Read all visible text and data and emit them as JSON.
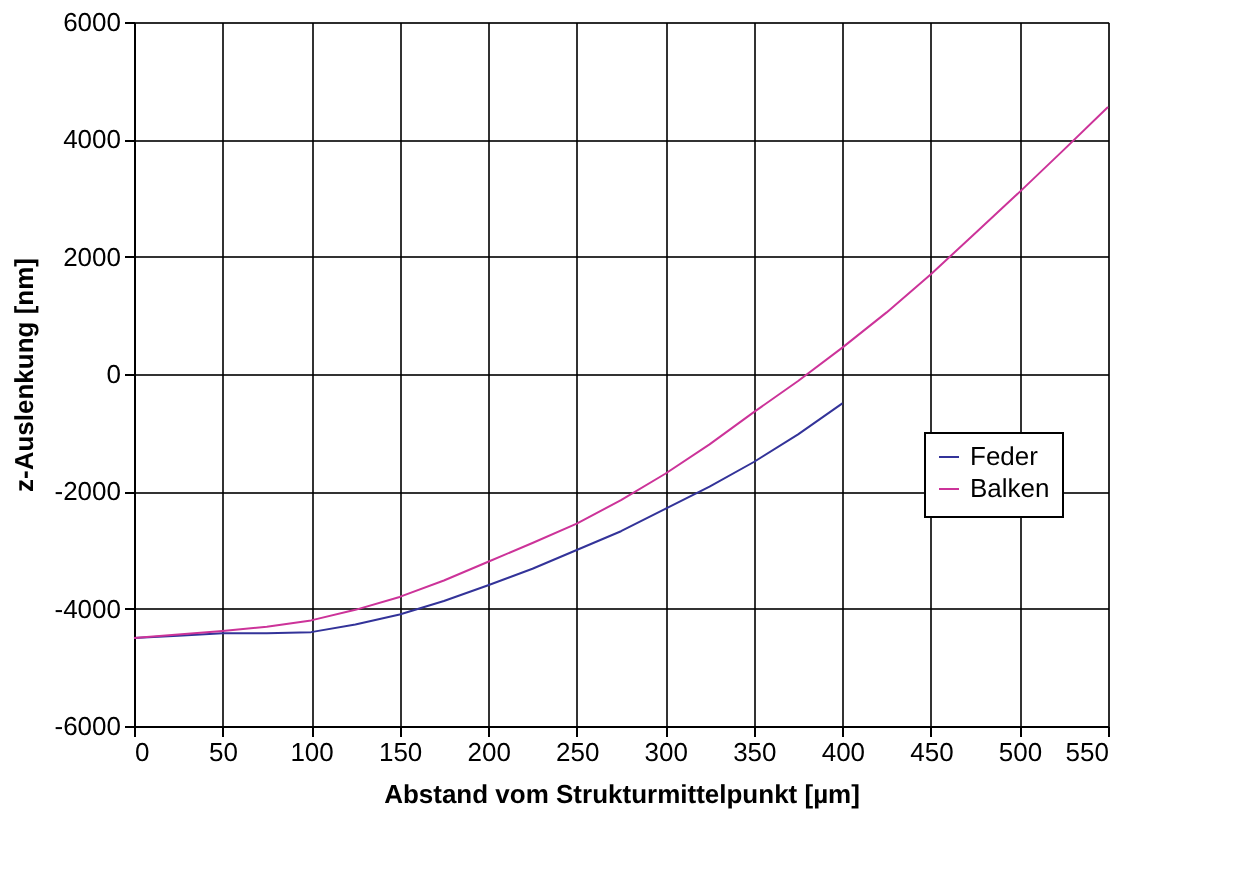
{
  "chart_data": {
    "type": "line",
    "xlabel": "Abstand vom Strukturmittelpunkt [µm]",
    "ylabel": "z-Auslenkung [nm]",
    "xlim": [
      0,
      550
    ],
    "xticks": [
      0,
      50,
      100,
      150,
      200,
      250,
      300,
      350,
      400,
      450,
      500,
      550
    ],
    "ylim": [
      -6000,
      6000
    ],
    "yticks": [
      -6000,
      -4000,
      -2000,
      0,
      2000,
      4000,
      6000
    ],
    "grid": true,
    "legend": "right",
    "marker": "none",
    "line_style": "solid",
    "series": [
      {
        "name": "Feder",
        "color": "#333399",
        "x": [
          0,
          25,
          50,
          75,
          100,
          125,
          150,
          175,
          200,
          225,
          250,
          275,
          300,
          325,
          350,
          375,
          400
        ],
        "values": [
          -4500,
          -4460,
          -4420,
          -4420,
          -4400,
          -4270,
          -4100,
          -3870,
          -3600,
          -3320,
          -3000,
          -2680,
          -2300,
          -1920,
          -1500,
          -1030,
          -500
        ]
      },
      {
        "name": "Balken",
        "color": "#cc3399",
        "x": [
          0,
          25,
          50,
          75,
          100,
          125,
          150,
          175,
          200,
          225,
          250,
          275,
          300,
          325,
          350,
          375,
          400,
          425,
          450,
          475,
          500,
          525,
          550
        ],
        "values": [
          -4500,
          -4440,
          -4380,
          -4310,
          -4200,
          -4020,
          -3800,
          -3520,
          -3200,
          -2880,
          -2550,
          -2150,
          -1700,
          -1200,
          -650,
          -120,
          450,
          1050,
          1700,
          2400,
          3100,
          3820,
          4550
        ]
      }
    ]
  }
}
